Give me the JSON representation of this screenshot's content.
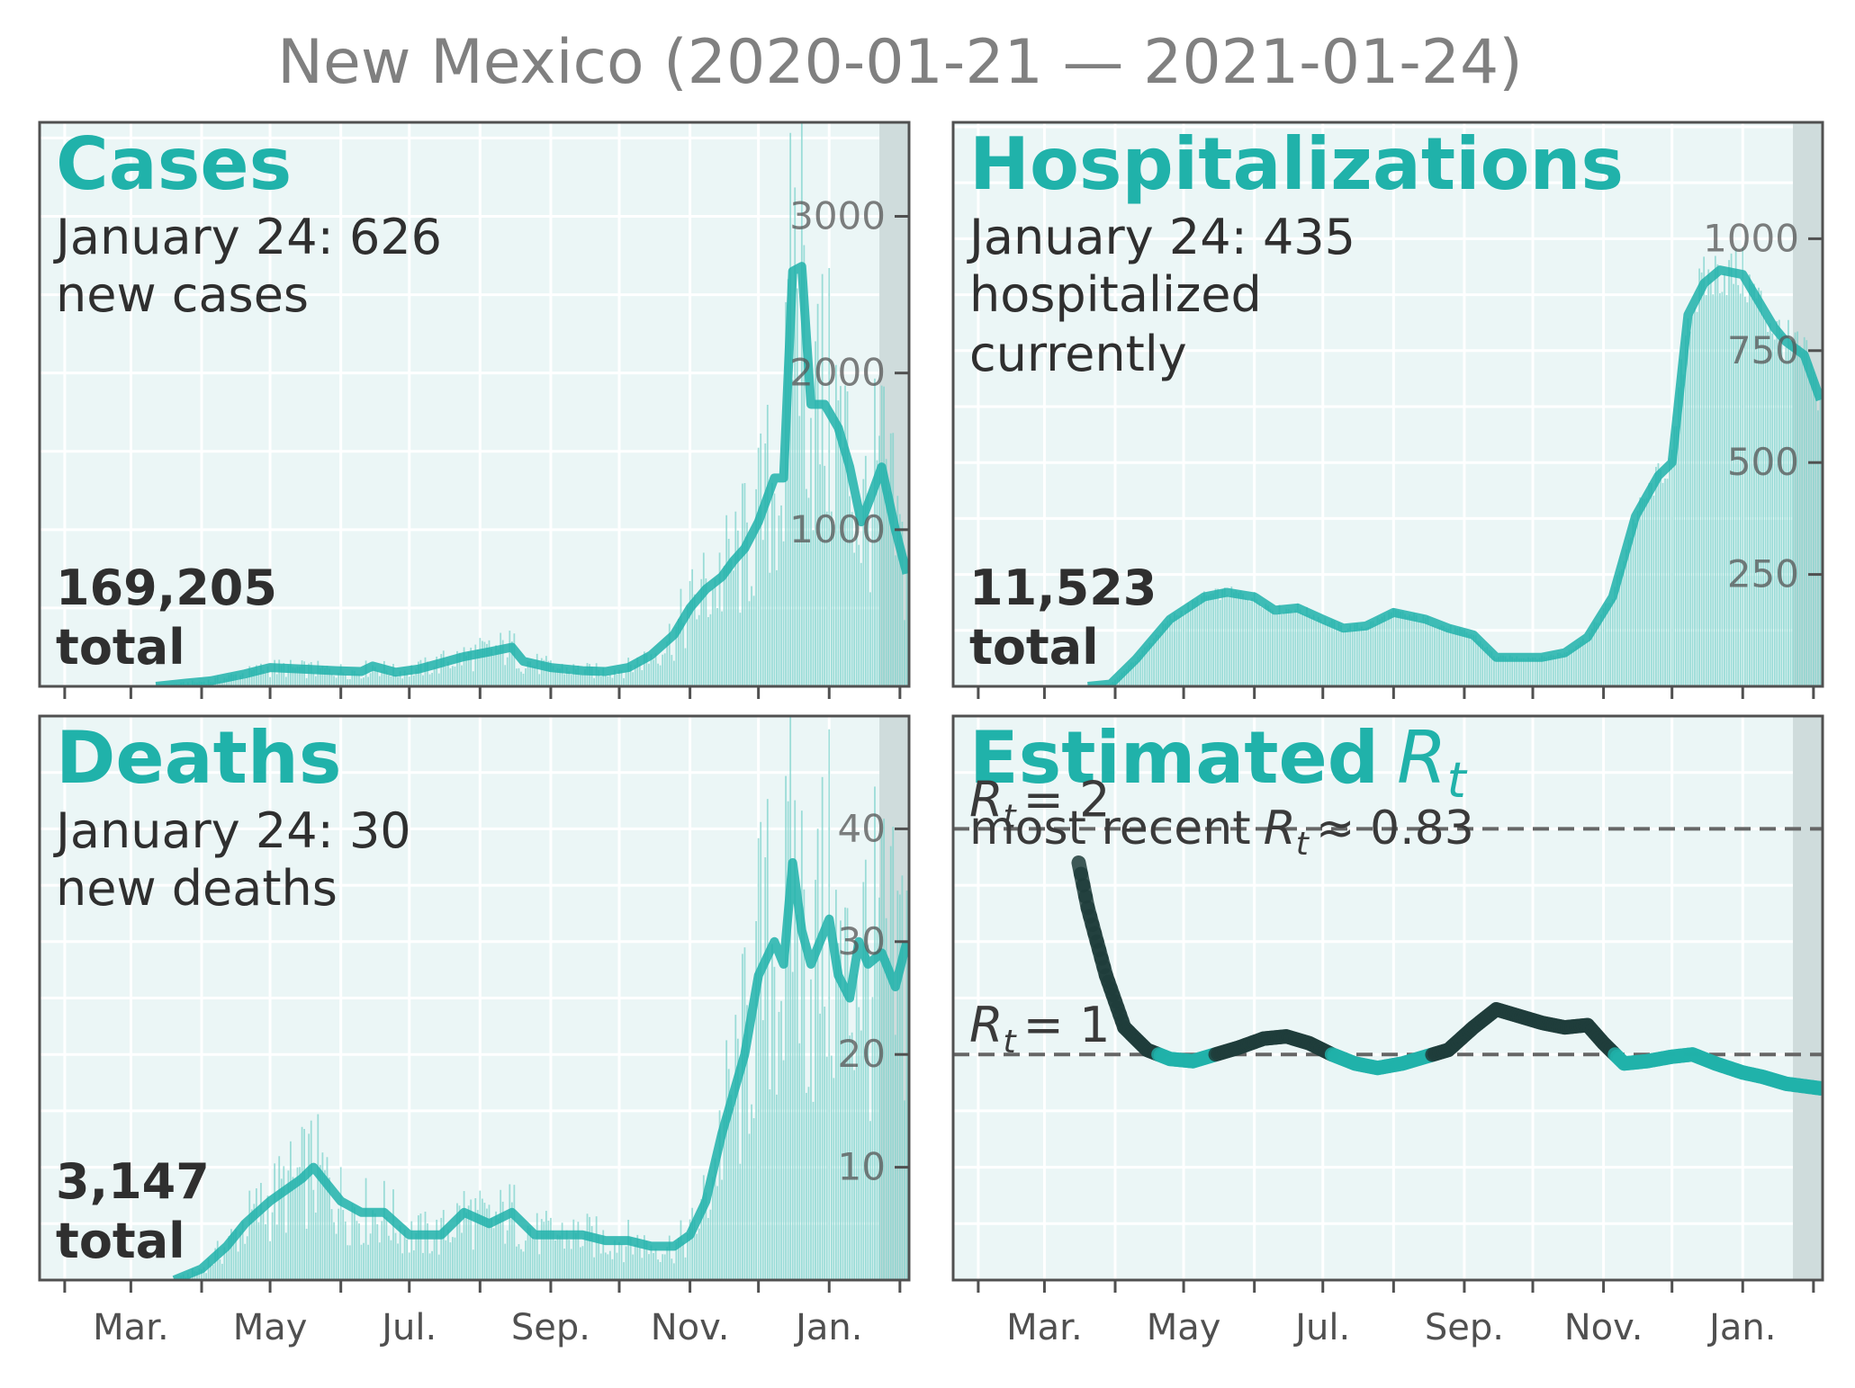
{
  "figure_title": "New Mexico (2020-01-21 — 2021-01-24)",
  "colors": {
    "accent": "#20b2aa",
    "bars": "#7fd3cc",
    "panel_bg": "#ebf6f6",
    "dark": "#1f3d3b",
    "text": "#2f2f2f",
    "tick": "#666666",
    "recent_shade": "#cfdcdc"
  },
  "x_ticks": [
    "Mar.",
    "May",
    "Jul.",
    "Sep.",
    "Nov.",
    "Jan."
  ],
  "chart_data": [
    {
      "type": "bar",
      "panel": "cases",
      "title": "Cases",
      "subtitle_line1": "January 24: 626",
      "subtitle_line2": "new cases",
      "total_value": "169,205",
      "total_label": "total",
      "y_ticks": [
        1000,
        2000,
        3000
      ],
      "ylim": [
        0,
        3600
      ],
      "x_range": [
        "2020-01-21",
        "2021-01-24"
      ],
      "series": [
        {
          "kind": "line",
          "points": [
            [
              "2020-03-12",
              0
            ],
            [
              "2020-03-25",
              20
            ],
            [
              "2020-04-05",
              35
            ],
            [
              "2020-04-20",
              80
            ],
            [
              "2020-05-01",
              120
            ],
            [
              "2020-05-15",
              110
            ],
            [
              "2020-05-30",
              100
            ],
            [
              "2020-06-10",
              95
            ],
            [
              "2020-06-15",
              130
            ],
            [
              "2020-06-25",
              90
            ],
            [
              "2020-07-05",
              110
            ],
            [
              "2020-07-15",
              150
            ],
            [
              "2020-07-25",
              190
            ],
            [
              "2020-08-05",
              220
            ],
            [
              "2020-08-15",
              250
            ],
            [
              "2020-08-20",
              160
            ],
            [
              "2020-09-01",
              120
            ],
            [
              "2020-09-15",
              100
            ],
            [
              "2020-09-25",
              95
            ],
            [
              "2020-10-05",
              120
            ],
            [
              "2020-10-15",
              200
            ],
            [
              "2020-10-25",
              330
            ],
            [
              "2020-11-01",
              500
            ],
            [
              "2020-11-08",
              620
            ],
            [
              "2020-11-15",
              700
            ],
            [
              "2020-11-20",
              800
            ],
            [
              "2020-11-25",
              880
            ],
            [
              "2020-12-01",
              1050
            ],
            [
              "2020-12-08",
              1330
            ],
            [
              "2020-12-12",
              1330
            ],
            [
              "2020-12-16",
              2650
            ],
            [
              "2020-12-20",
              2680
            ],
            [
              "2020-12-24",
              1800
            ],
            [
              "2020-12-30",
              1800
            ],
            [
              "2021-01-05",
              1650
            ],
            [
              "2021-01-10",
              1400
            ],
            [
              "2021-01-15",
              1050
            ],
            [
              "2021-01-19",
              1200
            ],
            [
              "2021-01-24",
              1400
            ],
            [
              "2021-01-30",
              1000
            ],
            [
              "2021-02-04",
              720
            ]
          ]
        }
      ]
    },
    {
      "type": "bar",
      "panel": "hospitalizations",
      "title": "Hospitalizations",
      "subtitle_line1": "January 24: 435",
      "subtitle_line2": "hospitalized",
      "subtitle_line3": "currently",
      "total_value": "11,523",
      "total_label": "total",
      "y_ticks": [
        250,
        500,
        750,
        1000
      ],
      "ylim": [
        0,
        1260
      ],
      "x_range": [
        "2020-01-21",
        "2021-01-24"
      ],
      "series": [
        {
          "kind": "line",
          "points": [
            [
              "2020-03-20",
              0
            ],
            [
              "2020-03-30",
              5
            ],
            [
              "2020-04-10",
              60
            ],
            [
              "2020-04-25",
              150
            ],
            [
              "2020-05-10",
              200
            ],
            [
              "2020-05-20",
              210
            ],
            [
              "2020-06-01",
              200
            ],
            [
              "2020-06-10",
              170
            ],
            [
              "2020-06-20",
              175
            ],
            [
              "2020-07-01",
              150
            ],
            [
              "2020-07-10",
              130
            ],
            [
              "2020-07-20",
              135
            ],
            [
              "2020-08-01",
              165
            ],
            [
              "2020-08-15",
              150
            ],
            [
              "2020-08-25",
              130
            ],
            [
              "2020-09-05",
              115
            ],
            [
              "2020-09-15",
              65
            ],
            [
              "2020-09-25",
              65
            ],
            [
              "2020-10-05",
              65
            ],
            [
              "2020-10-15",
              75
            ],
            [
              "2020-10-25",
              110
            ],
            [
              "2020-11-05",
              200
            ],
            [
              "2020-11-15",
              380
            ],
            [
              "2020-11-25",
              470
            ],
            [
              "2020-12-01",
              500
            ],
            [
              "2020-12-08",
              830
            ],
            [
              "2020-12-15",
              900
            ],
            [
              "2020-12-22",
              930
            ],
            [
              "2021-01-01",
              920
            ],
            [
              "2021-01-08",
              860
            ],
            [
              "2021-01-15",
              800
            ],
            [
              "2021-01-20",
              770
            ],
            [
              "2021-01-28",
              740
            ],
            [
              "2021-02-04",
              640
            ]
          ]
        }
      ]
    },
    {
      "type": "bar",
      "panel": "deaths",
      "title": "Deaths",
      "subtitle_line1": "January 24: 30",
      "subtitle_line2": "new deaths",
      "total_value": "3,147",
      "total_label": "total",
      "y_ticks": [
        10,
        20,
        30,
        40
      ],
      "ylim": [
        0,
        50
      ],
      "x_range": [
        "2020-01-21",
        "2021-01-24"
      ],
      "series": [
        {
          "kind": "line",
          "points": [
            [
              "2020-03-20",
              0
            ],
            [
              "2020-04-01",
              1
            ],
            [
              "2020-04-12",
              3
            ],
            [
              "2020-04-20",
              5
            ],
            [
              "2020-05-01",
              7
            ],
            [
              "2020-05-15",
              9
            ],
            [
              "2020-05-20",
              10
            ],
            [
              "2020-06-01",
              7
            ],
            [
              "2020-06-10",
              6
            ],
            [
              "2020-06-20",
              6
            ],
            [
              "2020-07-01",
              4
            ],
            [
              "2020-07-15",
              4
            ],
            [
              "2020-07-25",
              6
            ],
            [
              "2020-08-05",
              5
            ],
            [
              "2020-08-15",
              6
            ],
            [
              "2020-08-25",
              4
            ],
            [
              "2020-09-05",
              4
            ],
            [
              "2020-09-15",
              4
            ],
            [
              "2020-09-25",
              3.5
            ],
            [
              "2020-10-05",
              3.5
            ],
            [
              "2020-10-15",
              3
            ],
            [
              "2020-10-25",
              3
            ],
            [
              "2020-11-01",
              4
            ],
            [
              "2020-11-08",
              7
            ],
            [
              "2020-11-15",
              13
            ],
            [
              "2020-11-25",
              20
            ],
            [
              "2020-12-01",
              27
            ],
            [
              "2020-12-08",
              30
            ],
            [
              "2020-12-12",
              28
            ],
            [
              "2020-12-16",
              37
            ],
            [
              "2020-12-20",
              31
            ],
            [
              "2020-12-24",
              28
            ],
            [
              "2020-12-28",
              30
            ],
            [
              "2021-01-01",
              32
            ],
            [
              "2021-01-05",
              27
            ],
            [
              "2021-01-10",
              25
            ],
            [
              "2021-01-14",
              30
            ],
            [
              "2021-01-18",
              28
            ],
            [
              "2021-01-24",
              29
            ],
            [
              "2021-01-30",
              26
            ],
            [
              "2021-02-04",
              30
            ]
          ]
        }
      ]
    },
    {
      "type": "line",
      "panel": "rt",
      "title": "Estimated",
      "title_symbol": "R",
      "title_subscript": "t",
      "subtitle": "most recent",
      "subtitle_symbol": "R",
      "subtitle_subscript": "t",
      "subtitle_value": "≈ 0.83",
      "reference_lines": [
        {
          "value": 2,
          "label_symbol": "R",
          "label_subscript": "t",
          "label_text": "= 2"
        },
        {
          "value": 1,
          "label_symbol": "R",
          "label_subscript": "t",
          "label_text": "= 1"
        }
      ],
      "ylim": [
        0.0,
        2.5
      ],
      "x_range": [
        "2020-01-21",
        "2021-01-24"
      ],
      "series": [
        {
          "kind": "rt",
          "points": [
            [
              "2020-03-15",
              1.9
            ],
            [
              "2020-03-20",
              1.65
            ],
            [
              "2020-03-28",
              1.35
            ],
            [
              "2020-04-05",
              1.12
            ],
            [
              "2020-04-15",
              1.02
            ],
            [
              "2020-04-25",
              0.98
            ],
            [
              "2020-05-05",
              0.97
            ],
            [
              "2020-05-15",
              1.0
            ],
            [
              "2020-05-25",
              1.03
            ],
            [
              "2020-06-05",
              1.07
            ],
            [
              "2020-06-15",
              1.08
            ],
            [
              "2020-06-25",
              1.05
            ],
            [
              "2020-07-05",
              1.0
            ],
            [
              "2020-07-15",
              0.96
            ],
            [
              "2020-07-25",
              0.94
            ],
            [
              "2020-08-05",
              0.96
            ],
            [
              "2020-08-15",
              0.99
            ],
            [
              "2020-08-25",
              1.02
            ],
            [
              "2020-09-05",
              1.12
            ],
            [
              "2020-09-15",
              1.2
            ],
            [
              "2020-09-25",
              1.17
            ],
            [
              "2020-10-05",
              1.14
            ],
            [
              "2020-10-15",
              1.12
            ],
            [
              "2020-10-25",
              1.13
            ],
            [
              "2020-11-01",
              1.05
            ],
            [
              "2020-11-10",
              0.96
            ],
            [
              "2020-11-20",
              0.97
            ],
            [
              "2020-12-01",
              0.99
            ],
            [
              "2020-12-10",
              1.0
            ],
            [
              "2020-12-20",
              0.96
            ],
            [
              "2021-01-01",
              0.92
            ],
            [
              "2021-01-10",
              0.9
            ],
            [
              "2021-01-20",
              0.87
            ],
            [
              "2021-02-04",
              0.85
            ]
          ]
        }
      ]
    }
  ]
}
